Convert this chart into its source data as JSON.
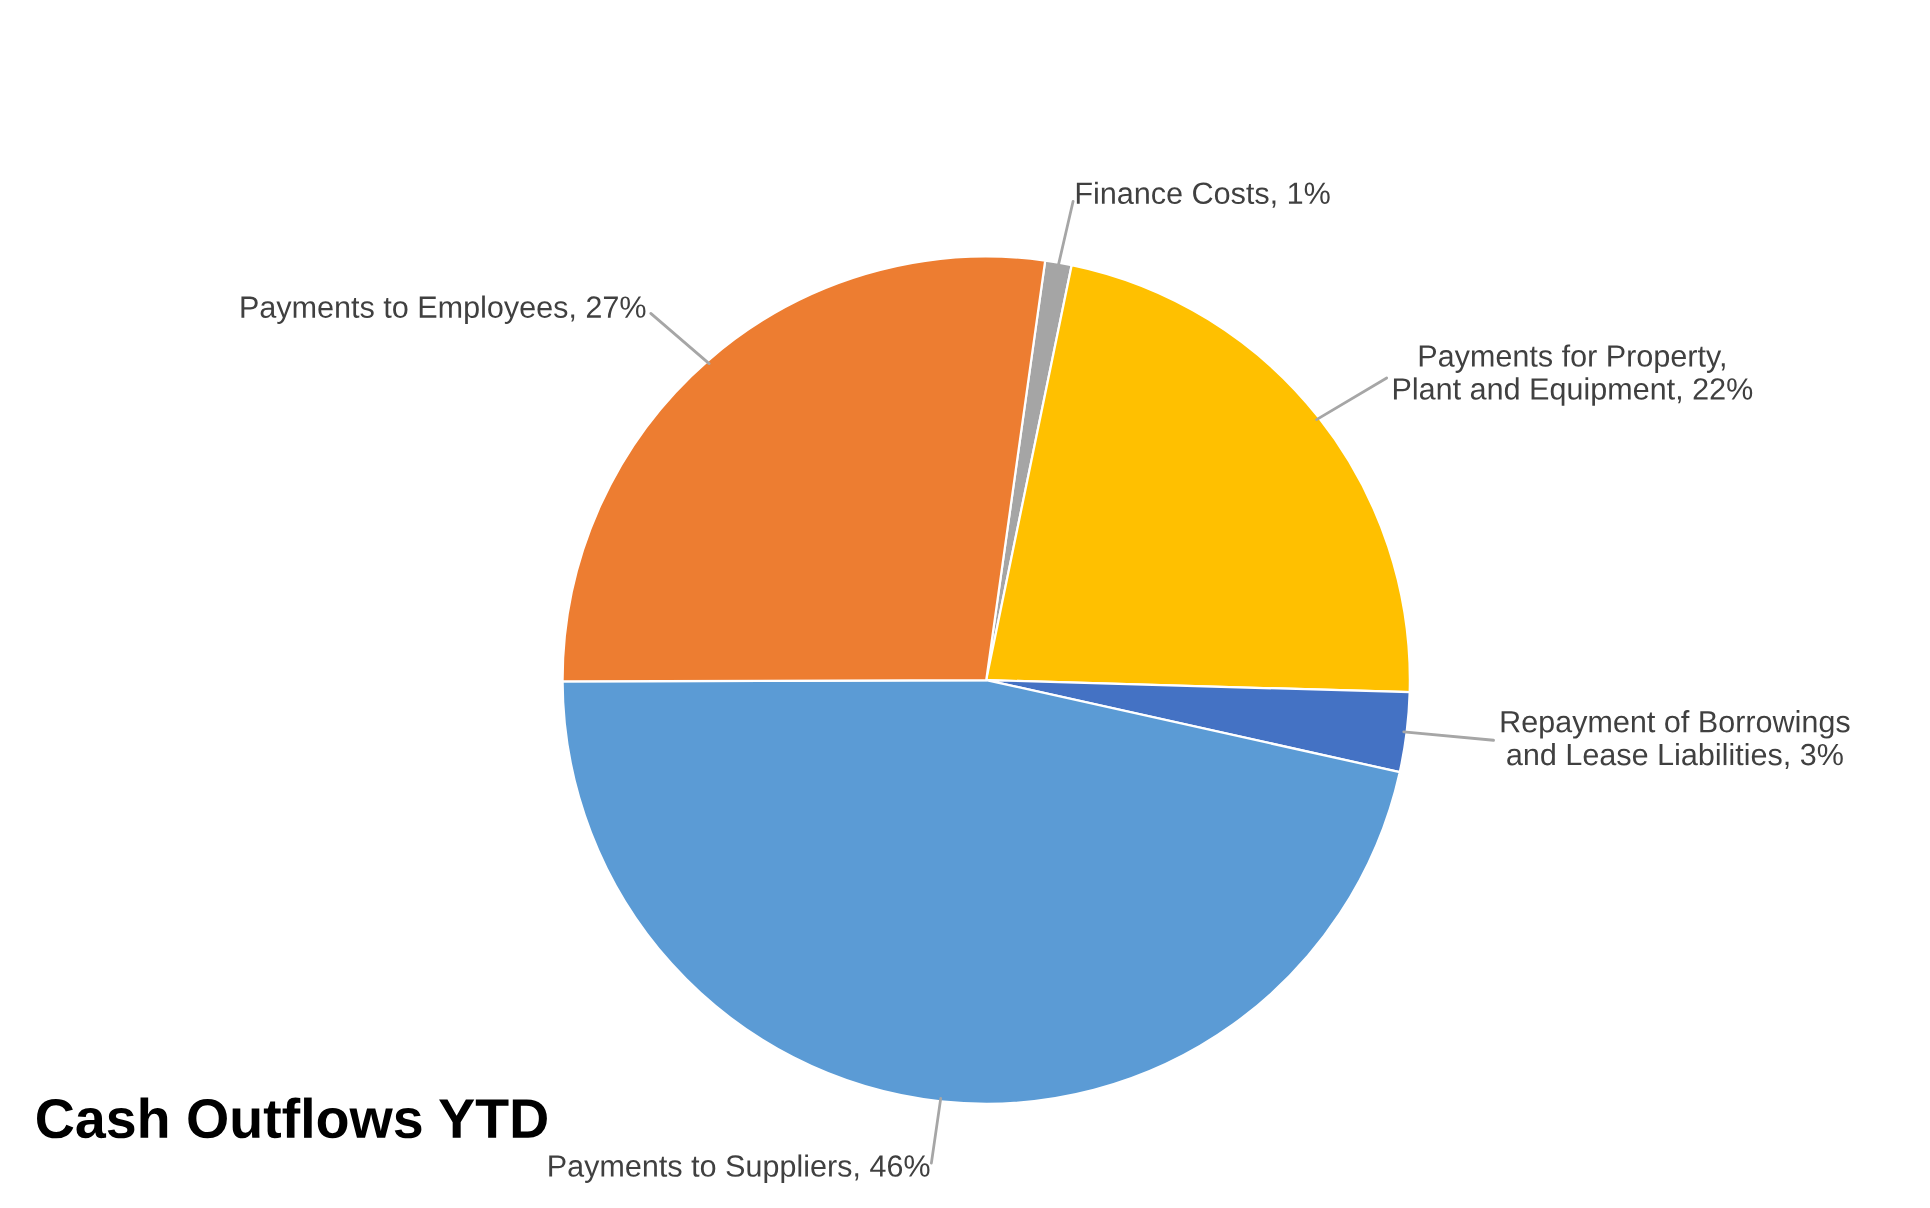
{
  "chart_data": {
    "type": "pie",
    "title": "Cash Outflows YTD",
    "categories": [
      "Finance Costs",
      "Payments for Property, Plant and Equipment",
      "Repayment of Borrowings and Lease Liabilities",
      "Payments to Suppliers",
      "Payments to Employees"
    ],
    "values": [
      1,
      22,
      3,
      46,
      27
    ],
    "value_labels": [
      "1%",
      "22%",
      "3%",
      "46%",
      "27%"
    ],
    "colors": [
      "#a5a5a5",
      "#ffc000",
      "#4472c4",
      "#5b9bd5",
      "#ed7d31"
    ],
    "legend": false
  }
}
